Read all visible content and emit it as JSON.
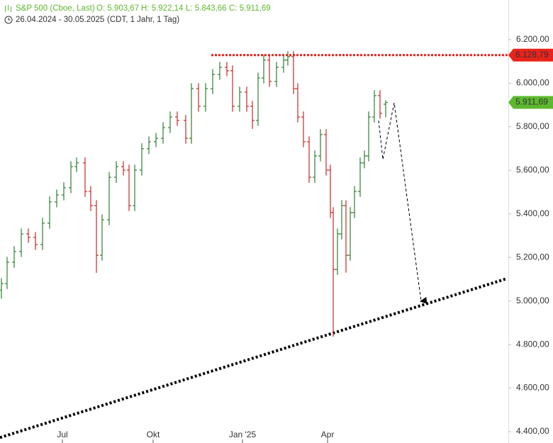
{
  "header": {
    "name": "S&P 500 (Cboe, Last)",
    "open": "O: 5.903,67",
    "high": "H: 5.922,14",
    "low": "L: 5.843,66",
    "close": "C: 5.911,69",
    "range": "26.04.2024 - 30.05.2025",
    "info": "(CDT, 1 Jahr, 1 Tag)"
  },
  "chart_data": {
    "type": "ohlc",
    "x": [
      0,
      4,
      9,
      14,
      19,
      24,
      29,
      34,
      39,
      44,
      49,
      53,
      59,
      63,
      67,
      71,
      76,
      81,
      86,
      90,
      94,
      99,
      104,
      109,
      114,
      119,
      124,
      130,
      134,
      139,
      144,
      149,
      154,
      159,
      163,
      168,
      173,
      177,
      181,
      185,
      189,
      194,
      199,
      202,
      206,
      209,
      213,
      217,
      221,
      225,
      229,
      232,
      234,
      237,
      240,
      243,
      246,
      249,
      253,
      256,
      259,
      263,
      267,
      271
    ],
    "open": [
      5050,
      5080,
      5178,
      5227,
      5308,
      5292,
      5259,
      5357,
      5455,
      5487,
      5520,
      5617,
      5634,
      5503,
      5438,
      5210,
      5373,
      5568,
      5617,
      5601,
      5438,
      5601,
      5699,
      5731,
      5747,
      5796,
      5845,
      5829,
      5747,
      5975,
      5894,
      5975,
      6040,
      6073,
      6057,
      5894,
      5959,
      5894,
      5829,
      6024,
      6106,
      6008,
      6073,
      6106,
      6122,
      5975,
      5845,
      5731,
      5568,
      5666,
      5764,
      5601,
      5406,
      5145,
      5308,
      5438,
      5210,
      5406,
      5503,
      5634,
      5666,
      5845,
      5943,
      5903.67
    ],
    "high": [
      5105,
      5203,
      5252,
      5333,
      5333,
      5317,
      5382,
      5480,
      5512,
      5545,
      5642,
      5659,
      5659,
      5528,
      5463,
      5398,
      5593,
      5642,
      5642,
      5626,
      5626,
      5724,
      5756,
      5772,
      5821,
      5870,
      5870,
      5854,
      6000,
      6000,
      6000,
      6065,
      6098,
      6098,
      6082,
      5984,
      5984,
      5919,
      6049,
      6131,
      6131,
      6098,
      6131,
      6147,
      6147,
      6000,
      5870,
      5756,
      5691,
      5789,
      5789,
      5626,
      5431,
      5333,
      5463,
      5463,
      5431,
      5528,
      5659,
      5691,
      5870,
      5968,
      5968,
      5922.14
    ],
    "low": [
      5010,
      5055,
      5153,
      5202,
      5267,
      5234,
      5234,
      5332,
      5430,
      5462,
      5495,
      5592,
      5478,
      5413,
      5129,
      5185,
      5348,
      5543,
      5576,
      5413,
      5413,
      5576,
      5674,
      5706,
      5722,
      5771,
      5804,
      5722,
      5722,
      5869,
      5869,
      5950,
      6015,
      6032,
      5869,
      5869,
      5869,
      5790,
      5804,
      5999,
      5983,
      5983,
      6048,
      6081,
      5950,
      5820,
      5706,
      5543,
      5543,
      5641,
      5576,
      5381,
      4836,
      5120,
      5283,
      5130,
      5185,
      5381,
      5478,
      5609,
      5641,
      5820,
      5837,
      5843.66
    ],
    "close": [
      5080,
      5178,
      5227,
      5308,
      5292,
      5259,
      5357,
      5455,
      5487,
      5520,
      5617,
      5634,
      5503,
      5438,
      5210,
      5373,
      5568,
      5617,
      5601,
      5438,
      5601,
      5699,
      5731,
      5747,
      5796,
      5845,
      5829,
      5747,
      5975,
      5894,
      5975,
      6040,
      6073,
      6057,
      5894,
      5959,
      5894,
      5829,
      6024,
      6106,
      6008,
      6073,
      6106,
      6122,
      5975,
      5845,
      5731,
      5568,
      5666,
      5764,
      5601,
      5406,
      5145,
      5308,
      5438,
      5210,
      5406,
      5503,
      5634,
      5666,
      5845,
      5943,
      5862,
      5911.69
    ],
    "up_color": "#2e7d32",
    "down_color": "#c62828",
    "xlim": [
      -1,
      357.5
    ],
    "ylim": [
      4348,
      6382
    ],
    "xticks": [
      {
        "value": 43,
        "label": "Jul"
      },
      {
        "value": 107,
        "label": "Okt"
      },
      {
        "value": 170,
        "label": "Jan '25"
      },
      {
        "value": 230,
        "label": "Apr"
      }
    ],
    "yticks": [
      {
        "value": 4400,
        "label": "4.400,00"
      },
      {
        "value": 4600,
        "label": "4.600,00"
      },
      {
        "value": 4800,
        "label": "4.800,00"
      },
      {
        "value": 5000,
        "label": "5.000,00"
      },
      {
        "value": 5200,
        "label": "5.200,00"
      },
      {
        "value": 5400,
        "label": "5.400,00"
      },
      {
        "value": 5600,
        "label": "5.600,00"
      },
      {
        "value": 5800,
        "label": "5.800,00"
      },
      {
        "value": 6000,
        "label": "6.000,00"
      },
      {
        "value": 6200,
        "label": "6.200,00"
      }
    ],
    "resistance": {
      "value": 6128.79,
      "label": "6.128,79",
      "color": "#e8231b"
    },
    "last_price": {
      "value": 5911.69,
      "label": "5.911,69",
      "color": "#5cb82e"
    },
    "trendline": {
      "x": [
        -1,
        356.5
      ],
      "y": [
        4373,
        5103
      ]
    },
    "projection": {
      "x": [
        266,
        269,
        277,
        296
      ],
      "y": [
        5829,
        5650,
        5910,
        4999
      ]
    }
  }
}
